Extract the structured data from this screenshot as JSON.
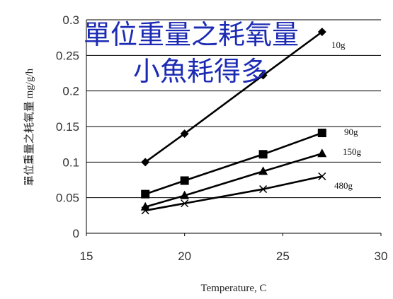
{
  "chart_data": {
    "type": "line",
    "title": "",
    "overlay_text": [
      "單位重量之耗氧量",
      "小魚耗得多"
    ],
    "xlabel": "Temperature, C",
    "ylabel": "單位重量之耗氧量 mg/g/h",
    "xlim": [
      15,
      30
    ],
    "ylim": [
      0,
      0.3
    ],
    "x_ticks": [
      "15",
      "20",
      "25",
      "30"
    ],
    "y_ticks": [
      "0",
      "0.05",
      "0.1",
      "0.15",
      "0.2",
      "0.25",
      "0.3"
    ],
    "grid": "horizontal",
    "legend": "none (series labeled at line ends)",
    "series": [
      {
        "name": "10g",
        "marker": "diamond",
        "x": [
          18,
          20,
          24,
          27
        ],
        "values": [
          0.1,
          0.14,
          0.222,
          0.283
        ]
      },
      {
        "name": "90g",
        "marker": "square",
        "x": [
          18,
          20,
          24,
          27
        ],
        "values": [
          0.055,
          0.074,
          0.111,
          0.141
        ]
      },
      {
        "name": "150g",
        "marker": "triangle",
        "x": [
          18,
          20,
          24,
          27
        ],
        "values": [
          0.037,
          0.053,
          0.087,
          0.112
        ]
      },
      {
        "name": "480g",
        "marker": "cross",
        "x": [
          18,
          20,
          24,
          27
        ],
        "values": [
          0.032,
          0.042,
          0.062,
          0.08
        ]
      }
    ],
    "colors": {
      "line": "#000000",
      "grid": "#000000",
      "overlay_text": "#1c2bb4"
    }
  }
}
